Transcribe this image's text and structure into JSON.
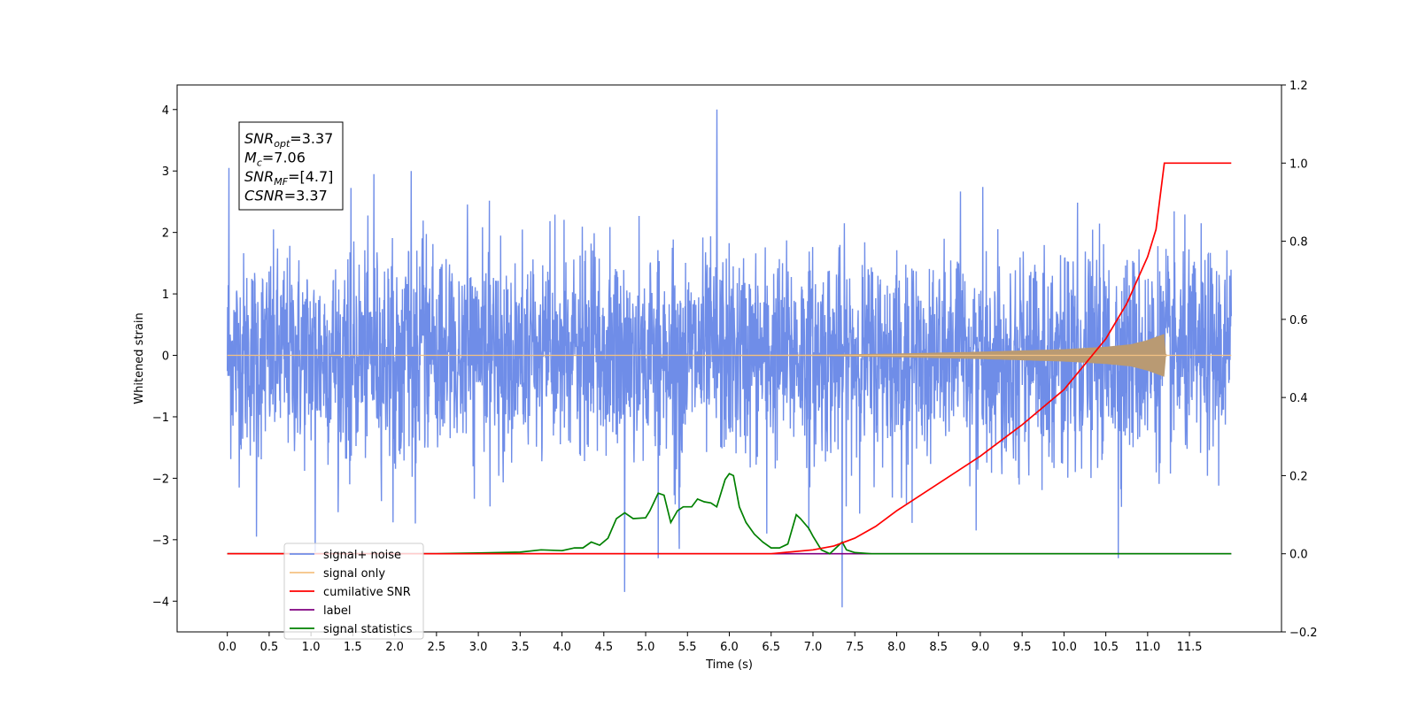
{
  "chart_data": {
    "type": "line",
    "title": "",
    "xlabel": "Time (s)",
    "ylabel": "Whitened strain",
    "y2label": "",
    "xlim": [
      -0.6,
      12.6
    ],
    "ylim": [
      -4.5,
      4.4
    ],
    "y2lim": [
      -0.2,
      1.2
    ],
    "x_ticks": [
      "0.0",
      "0.5",
      "1.0",
      "1.5",
      "2.0",
      "2.5",
      "3.0",
      "3.5",
      "4.0",
      "4.5",
      "5.0",
      "5.5",
      "6.0",
      "6.5",
      "7.0",
      "7.5",
      "8.0",
      "8.5",
      "9.0",
      "9.5",
      "10.0",
      "10.5",
      "11.0",
      "11.5"
    ],
    "y_ticks": [
      "4",
      "3",
      "2",
      "1",
      "0",
      "−1",
      "−2",
      "−3",
      "−4"
    ],
    "y2_ticks": [
      "1.2",
      "1.0",
      "0.8",
      "0.6",
      "0.4",
      "0.2",
      "0.0",
      "−0.2"
    ],
    "grid": false,
    "legend_position": "lower-left",
    "legend": [
      {
        "label": "signal+ noise",
        "color": "#6f8de8"
      },
      {
        "label": "signal only",
        "color": "#f4c283"
      },
      {
        "label": "cumilative SNR",
        "color": "#ff0000"
      },
      {
        "label": "label",
        "color": "#800080"
      },
      {
        "label": "signal statistics",
        "color": "#008000"
      }
    ],
    "annotation": {
      "lines": [
        {
          "main": "SNR",
          "sub": "opt",
          "value": "=3.37"
        },
        {
          "main": "M",
          "sub": "c",
          "value": "=7.06"
        },
        {
          "main": "SNR",
          "sub": "MF",
          "value": "=[4.7]"
        },
        {
          "main": "CSNR",
          "sub": "",
          "value": "=3.37"
        }
      ]
    },
    "series": [
      {
        "name": "signal+ noise",
        "axis": "left",
        "color": "#6f8de8",
        "description_range": [
          -4.1,
          4.0
        ],
        "x_range": [
          0.0,
          12.0
        ],
        "typical_band": [
          -1.9,
          2.0
        ],
        "spikes": [
          [
            0.02,
            3.05
          ],
          [
            0.35,
            -2.95
          ],
          [
            1.05,
            -3.2
          ],
          [
            2.2,
            3.0
          ],
          [
            4.75,
            -3.85
          ],
          [
            5.15,
            -3.3
          ],
          [
            5.4,
            -3.15
          ],
          [
            5.85,
            4.0
          ],
          [
            6.45,
            -2.9
          ],
          [
            7.35,
            -4.1
          ],
          [
            10.65,
            -3.3
          ],
          [
            1.75,
            2.95
          ],
          [
            8.95,
            -2.85
          ],
          [
            6.95,
            -2.85
          ]
        ]
      },
      {
        "name": "signal only",
        "axis": "left",
        "color": "#f4c283",
        "x": [
          0,
          7.0,
          8.0,
          9.0,
          9.5,
          10.0,
          10.5,
          10.8,
          11.0,
          11.2,
          11.22,
          12.0
        ],
        "envelope": [
          0.005,
          0.01,
          0.03,
          0.06,
          0.08,
          0.1,
          0.14,
          0.18,
          0.25,
          0.35,
          0.0,
          0.0
        ]
      },
      {
        "name": "cumilative SNR",
        "axis": "right",
        "color": "#ff0000",
        "x": [
          0,
          6.5,
          7.0,
          7.25,
          7.5,
          7.75,
          8.0,
          8.5,
          9.0,
          9.5,
          10.0,
          10.5,
          10.75,
          11.0,
          11.1,
          11.2,
          11.3,
          11.5,
          12.0
        ],
        "y": [
          0.0,
          0.0,
          0.01,
          0.02,
          0.04,
          0.07,
          0.11,
          0.18,
          0.25,
          0.33,
          0.42,
          0.55,
          0.64,
          0.76,
          0.83,
          1.0,
          1.0,
          1.0,
          1.0
        ]
      },
      {
        "name": "label",
        "axis": "right",
        "color": "#800080",
        "x": [
          0,
          12.0
        ],
        "y": [
          0.0,
          0.0
        ]
      },
      {
        "name": "signal statistics",
        "axis": "right",
        "color": "#008000",
        "x": [
          0,
          2.5,
          3.0,
          3.5,
          3.75,
          4.0,
          4.15,
          4.25,
          4.35,
          4.45,
          4.55,
          4.65,
          4.75,
          4.85,
          5.0,
          5.05,
          5.15,
          5.22,
          5.3,
          5.38,
          5.45,
          5.55,
          5.62,
          5.7,
          5.78,
          5.85,
          5.95,
          6.0,
          6.05,
          6.12,
          6.2,
          6.3,
          6.4,
          6.5,
          6.6,
          6.7,
          6.8,
          6.85,
          6.95,
          7.0,
          7.1,
          7.2,
          7.3,
          7.35,
          7.4,
          7.5,
          7.7,
          12.0
        ],
        "y": [
          0.0,
          0.0,
          0.002,
          0.004,
          0.01,
          0.008,
          0.015,
          0.015,
          0.03,
          0.022,
          0.04,
          0.09,
          0.105,
          0.09,
          0.092,
          0.11,
          0.155,
          0.15,
          0.08,
          0.11,
          0.12,
          0.12,
          0.14,
          0.133,
          0.13,
          0.12,
          0.19,
          0.205,
          0.2,
          0.12,
          0.08,
          0.05,
          0.03,
          0.015,
          0.015,
          0.025,
          0.1,
          0.09,
          0.065,
          0.045,
          0.01,
          0.0,
          0.02,
          0.03,
          0.01,
          0.003,
          0.0,
          0.0
        ]
      }
    ]
  }
}
